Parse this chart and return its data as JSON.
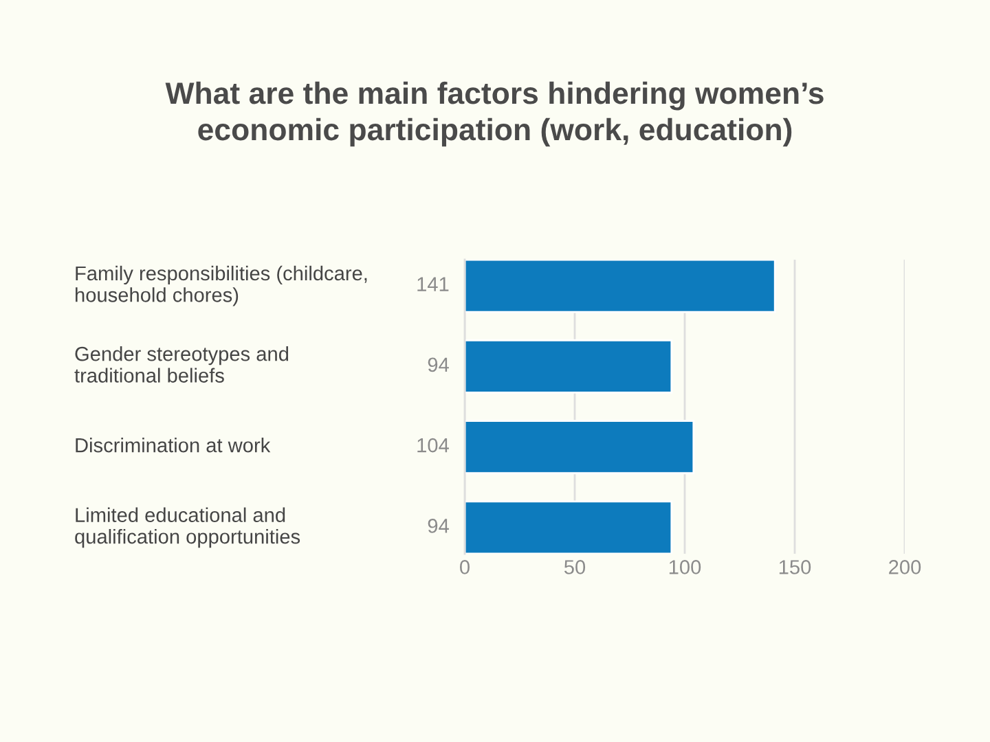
{
  "chart_data": {
    "type": "bar",
    "orientation": "horizontal",
    "title": "What are the main factors hindering women’s\neconomic participation (work, education)",
    "categories": [
      "Family responsibilities (childcare,\nhousehold chores)",
      "Gender stereotypes and\ntraditional beliefs",
      "Discrimination at work",
      "Limited educational and\nqualification opportunities"
    ],
    "values": [
      141,
      94,
      104,
      94
    ],
    "color": "#0d7bbd",
    "xlim": [
      0,
      200
    ],
    "xticks": [
      0,
      50,
      100,
      150,
      200
    ],
    "grid": "x",
    "data_labels": true
  }
}
